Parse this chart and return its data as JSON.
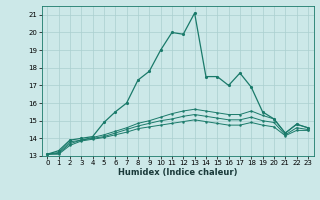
{
  "title": "",
  "xlabel": "Humidex (Indice chaleur)",
  "bg_color": "#cce8e8",
  "line_color": "#1a7a6a",
  "grid_color": "#aacfcf",
  "xlim": [
    -0.5,
    23.5
  ],
  "ylim": [
    13,
    21.5
  ],
  "yticks": [
    13,
    14,
    15,
    16,
    17,
    18,
    19,
    20,
    21
  ],
  "xticks": [
    0,
    1,
    2,
    3,
    4,
    5,
    6,
    7,
    8,
    9,
    10,
    11,
    12,
    13,
    14,
    15,
    16,
    17,
    18,
    19,
    20,
    21,
    22,
    23
  ],
  "main_line": {
    "x": [
      0,
      1,
      2,
      3,
      4,
      5,
      6,
      7,
      8,
      9,
      10,
      11,
      12,
      13,
      14,
      15,
      16,
      17,
      18,
      19,
      20,
      21,
      22,
      23
    ],
    "y": [
      13.1,
      13.3,
      13.9,
      14.0,
      14.1,
      14.9,
      15.5,
      16.0,
      17.3,
      17.8,
      19.0,
      20.0,
      19.9,
      21.1,
      17.5,
      17.5,
      17.0,
      17.7,
      16.9,
      15.5,
      15.1,
      14.3,
      14.8,
      14.6
    ]
  },
  "line2": {
    "x": [
      0,
      1,
      2,
      3,
      4,
      5,
      6,
      7,
      8,
      9,
      10,
      11,
      12,
      13,
      14,
      15,
      16,
      17,
      18,
      19,
      20,
      21,
      22,
      23
    ],
    "y": [
      13.1,
      13.2,
      13.8,
      13.9,
      14.05,
      14.2,
      14.4,
      14.6,
      14.85,
      15.0,
      15.2,
      15.4,
      15.55,
      15.65,
      15.55,
      15.45,
      15.35,
      15.35,
      15.55,
      15.3,
      15.1,
      14.3,
      14.8,
      14.6
    ]
  },
  "line3": {
    "x": [
      0,
      1,
      2,
      3,
      4,
      5,
      6,
      7,
      8,
      9,
      10,
      11,
      12,
      13,
      14,
      15,
      16,
      17,
      18,
      19,
      20,
      21,
      22,
      23
    ],
    "y": [
      13.1,
      13.15,
      13.7,
      13.9,
      14.0,
      14.1,
      14.3,
      14.5,
      14.7,
      14.85,
      15.0,
      15.1,
      15.25,
      15.35,
      15.25,
      15.15,
      15.05,
      15.05,
      15.2,
      15.0,
      14.9,
      14.2,
      14.6,
      14.5
    ]
  },
  "line4": {
    "x": [
      0,
      1,
      2,
      3,
      4,
      5,
      6,
      7,
      8,
      9,
      10,
      11,
      12,
      13,
      14,
      15,
      16,
      17,
      18,
      19,
      20,
      21,
      22,
      23
    ],
    "y": [
      13.1,
      13.1,
      13.6,
      13.85,
      13.95,
      14.05,
      14.2,
      14.35,
      14.55,
      14.65,
      14.75,
      14.85,
      14.95,
      15.05,
      14.95,
      14.85,
      14.75,
      14.75,
      14.9,
      14.75,
      14.65,
      14.15,
      14.45,
      14.45
    ]
  }
}
